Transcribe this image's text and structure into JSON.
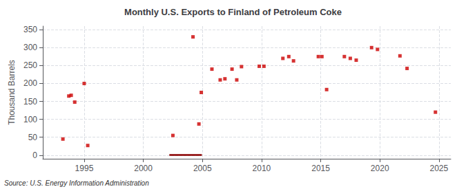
{
  "chart_data": {
    "type": "scatter",
    "title": "Monthly U.S. Exports to Finland of Petroleum Coke",
    "ylabel": "Thousand Barrels",
    "source": "Source: U.S. Energy Information Administration",
    "series": [
      {
        "type": "scatter",
        "color": "#cc0000",
        "marker": "square",
        "x": [
          1993.2,
          1993.7,
          1993.9,
          1994.2,
          1995.0,
          1995.3,
          2002.5,
          2004.2,
          2004.7,
          2004.9,
          2005.8,
          2006.5,
          2006.9,
          2007.5,
          2007.9,
          2008.3,
          2009.8,
          2010.2,
          2011.8,
          2012.3,
          2012.7,
          2014.8,
          2015.1,
          2015.5,
          2017.0,
          2017.5,
          2018.0,
          2019.3,
          2019.8,
          2021.7,
          2022.3,
          2024.7
        ],
        "values": [
          45,
          165,
          167,
          148,
          200,
          27,
          55,
          330,
          87,
          175,
          240,
          210,
          213,
          240,
          210,
          247,
          248,
          248,
          270,
          275,
          263,
          275,
          275,
          183,
          275,
          270,
          265,
          300,
          295,
          277,
          242,
          120
        ]
      },
      {
        "type": "bar",
        "color": "#8b0000",
        "x_start": 2002.2,
        "x_end": 2004.95,
        "y": -2,
        "height": 5
      }
    ],
    "xlim": [
      1991.5,
      2026
    ],
    "xticks": [
      1995,
      2000,
      2005,
      2010,
      2015,
      2020,
      2025
    ],
    "ylim": [
      -10,
      360
    ],
    "yticks": [
      0,
      50,
      100,
      150,
      200,
      250,
      300,
      350
    ],
    "grid": true
  }
}
